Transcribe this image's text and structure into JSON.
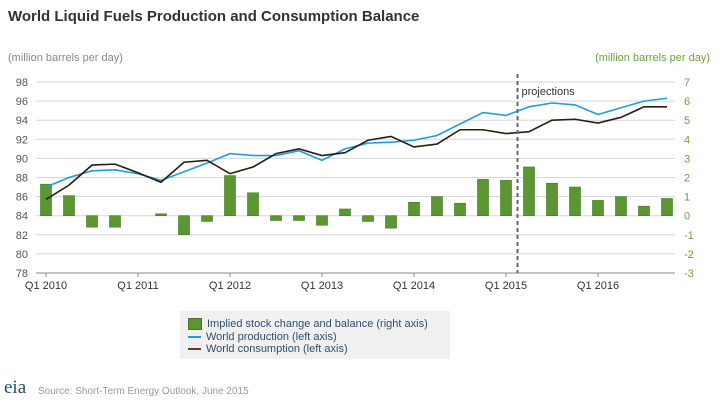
{
  "chart_data": {
    "type": "bar+line",
    "title": "World Liquid Fuels Production and Consumption Balance",
    "ylabel_left": "(million barrels per day)",
    "ylabel_right": "(million barrels per day)",
    "ylim_left": [
      78,
      98
    ],
    "ylim_right": [
      -3,
      7
    ],
    "yticks_left": [
      "78",
      "80",
      "82",
      "84",
      "86",
      "88",
      "90",
      "92",
      "94",
      "96",
      "98"
    ],
    "yticks_right": [
      "-3",
      "-2",
      "-1",
      "0",
      "1",
      "2",
      "3",
      "4",
      "5",
      "6",
      "7"
    ],
    "categories": [
      "Q1 2010",
      "Q2 2010",
      "Q3 2010",
      "Q4 2010",
      "Q1 2011",
      "Q2 2011",
      "Q3 2011",
      "Q4 2011",
      "Q1 2012",
      "Q2 2012",
      "Q3 2012",
      "Q4 2012",
      "Q1 2013",
      "Q2 2013",
      "Q3 2013",
      "Q4 2013",
      "Q1 2014",
      "Q2 2014",
      "Q3 2014",
      "Q4 2014",
      "Q1 2015",
      "Q2 2015",
      "Q3 2015",
      "Q4 2015",
      "Q1 2016",
      "Q2 2016",
      "Q3 2016",
      "Q4 2016"
    ],
    "xtick_labels": [
      "Q1 2010",
      "Q1 2011",
      "Q1 2012",
      "Q1 2013",
      "Q1 2014",
      "Q1 2015",
      "Q1 2016"
    ],
    "grid": true,
    "annotation": "projections",
    "projection_start": "Q2 2015",
    "series": [
      {
        "name": "Implied stock change and balance (right axis)",
        "type": "bar",
        "axis": "right",
        "color": "#5b9632",
        "values": [
          1.65,
          1.05,
          -0.6,
          -0.6,
          0,
          0.1,
          -1.0,
          -0.3,
          2.1,
          1.2,
          -0.25,
          -0.25,
          -0.5,
          0.35,
          -0.3,
          -0.65,
          0.7,
          1.0,
          0.65,
          1.9,
          1.85,
          2.55,
          1.7,
          1.5,
          0.8,
          1.0,
          0.5,
          0.9
        ]
      },
      {
        "name": "World production (left axis)",
        "type": "line",
        "axis": "left",
        "color": "#1e9ee0",
        "values": [
          87.0,
          88.0,
          88.7,
          88.8,
          88.4,
          87.7,
          88.6,
          89.5,
          90.5,
          90.3,
          90.3,
          90.8,
          89.8,
          91.0,
          91.6,
          91.7,
          91.9,
          92.4,
          93.6,
          94.8,
          94.5,
          95.4,
          95.8,
          95.6,
          94.6,
          95.3,
          96.0,
          96.3
        ]
      },
      {
        "name": "World consumption (left axis)",
        "type": "line",
        "axis": "left",
        "color": "#2b1d0e",
        "values": [
          85.7,
          87.2,
          89.3,
          89.4,
          88.5,
          87.5,
          89.6,
          89.8,
          88.4,
          89.1,
          90.5,
          91.0,
          90.3,
          90.6,
          91.9,
          92.3,
          91.2,
          91.5,
          93.0,
          93.0,
          92.6,
          92.8,
          94.0,
          94.1,
          93.7,
          94.3,
          95.4,
          95.4
        ]
      }
    ],
    "legend_position": "bottom"
  },
  "footer": {
    "source": "Source: Short-Term Energy Outlook, June 2015",
    "logo": "eia"
  }
}
